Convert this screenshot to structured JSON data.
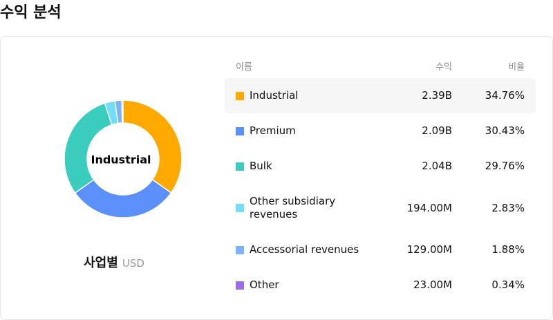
{
  "header": {
    "title": "수익 분석"
  },
  "chart_data": {
    "type": "donut",
    "center_label": "Industrial",
    "caption": "사업별",
    "unit": "USD",
    "columns": [
      "이름",
      "수익",
      "비율"
    ],
    "categories": [
      "Industrial",
      "Premium",
      "Bulk",
      "Other subsidiary revenues",
      "Accessorial revenues",
      "Other"
    ],
    "colors": [
      "#FFA800",
      "#5B8FF9",
      "#3ACDBE",
      "#72DEF8",
      "#7DB1FA",
      "#9B6BF0"
    ],
    "revenue": [
      "2.39B",
      "2.09B",
      "2.04B",
      "194.00M",
      "129.00M",
      "23.00M"
    ],
    "values": [
      34.76,
      30.43,
      29.76,
      2.83,
      1.88,
      0.34
    ],
    "value_labels": [
      "34.76%",
      "30.43%",
      "29.76%",
      "2.83%",
      "1.88%",
      "0.34%"
    ]
  }
}
